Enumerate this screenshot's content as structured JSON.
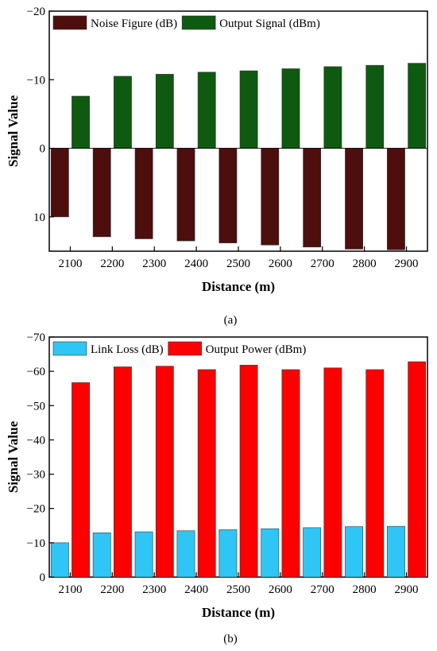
{
  "chart_data": [
    {
      "type": "bar",
      "panel": "a",
      "caption": "(a)",
      "xlabel": "Distance (m)",
      "ylabel": "Signal Value",
      "categories": [
        "2100",
        "2200",
        "2300",
        "2400",
        "2500",
        "2600",
        "2700",
        "2800",
        "2900"
      ],
      "ylim": [
        15,
        -20
      ],
      "y_inverted": true,
      "yticks": [
        10,
        0,
        -10,
        -20
      ],
      "ytick_labels": [
        "10",
        "0",
        "−10",
        "−20"
      ],
      "grid": false,
      "legend_position": "top-left",
      "series": [
        {
          "name": "Noise Figure (dB)",
          "color": "#4d0e0e",
          "values": [
            10,
            12.9,
            13.2,
            13.5,
            13.8,
            14.1,
            14.4,
            14.7,
            14.8
          ]
        },
        {
          "name": "Output Signal (dBm)",
          "color": "#0e5a10",
          "values": [
            -7.6,
            -10.5,
            -10.8,
            -11.1,
            -11.3,
            -11.6,
            -11.9,
            -12.1,
            -12.4
          ]
        }
      ]
    },
    {
      "type": "bar",
      "panel": "b",
      "caption": "(b)",
      "xlabel": "Distance (m)",
      "ylabel": "Signal Value",
      "categories": [
        "2100",
        "2200",
        "2300",
        "2400",
        "2500",
        "2600",
        "2700",
        "2800",
        "2900"
      ],
      "ylim": [
        0,
        -70
      ],
      "y_inverted": true,
      "yticks": [
        0,
        -10,
        -20,
        -30,
        -40,
        -50,
        -60,
        -70
      ],
      "ytick_labels": [
        "0",
        "−10",
        "−20",
        "−30",
        "−40",
        "−50",
        "−60",
        "−70"
      ],
      "grid": false,
      "legend_position": "top-left",
      "series": [
        {
          "name": "Link Loss (dB)",
          "color": "#2fc6f5",
          "values": [
            -10,
            -12.9,
            -13.2,
            -13.5,
            -13.8,
            -14.1,
            -14.4,
            -14.7,
            -14.8
          ]
        },
        {
          "name": "Output Power (dBm)",
          "color": "#ff0000",
          "values": [
            -56.7,
            -61.3,
            -61.5,
            -60.5,
            -61.8,
            -60.5,
            -61.0,
            -60.5,
            -62.8
          ]
        }
      ]
    }
  ]
}
